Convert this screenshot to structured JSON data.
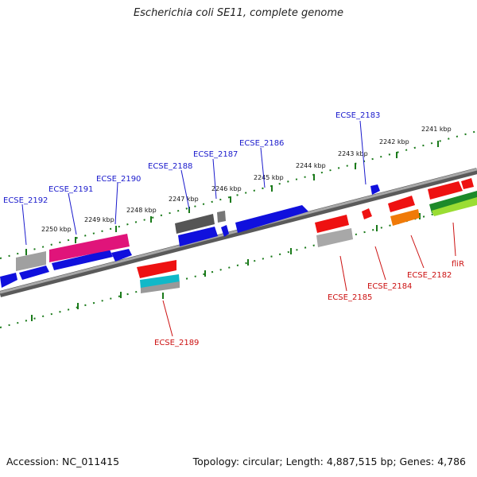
{
  "title": "Escherichia coli SE11, complete genome",
  "footer": {
    "accession": "Accession: NC_011415",
    "summary": "Topology: circular; Length: 4,887,515 bp; Genes: 4,786"
  },
  "kbp_ticks": [
    "2241 kbp",
    "2242 kbp",
    "2243 kbp",
    "2244 kbp",
    "2245 kbp",
    "2246 kbp",
    "2247 kbp",
    "2248 kbp",
    "2249 kbp",
    "2250 kbp"
  ],
  "gene_labels_top": [
    "ECSE_2183",
    "ECSE_2186",
    "ECSE_2187",
    "ECSE_2188",
    "ECSE_2190",
    "ECSE_2191",
    "ECSE_2192"
  ],
  "gene_labels_bottom": [
    "fliR",
    "ECSE_2182",
    "ECSE_2184",
    "ECSE_2185",
    "ECSE_2189"
  ],
  "colors": {
    "top_label": "#1a1acc",
    "bottom_label": "#cc1111",
    "tick": "#1a7a1a",
    "backbone": "#808080"
  }
}
